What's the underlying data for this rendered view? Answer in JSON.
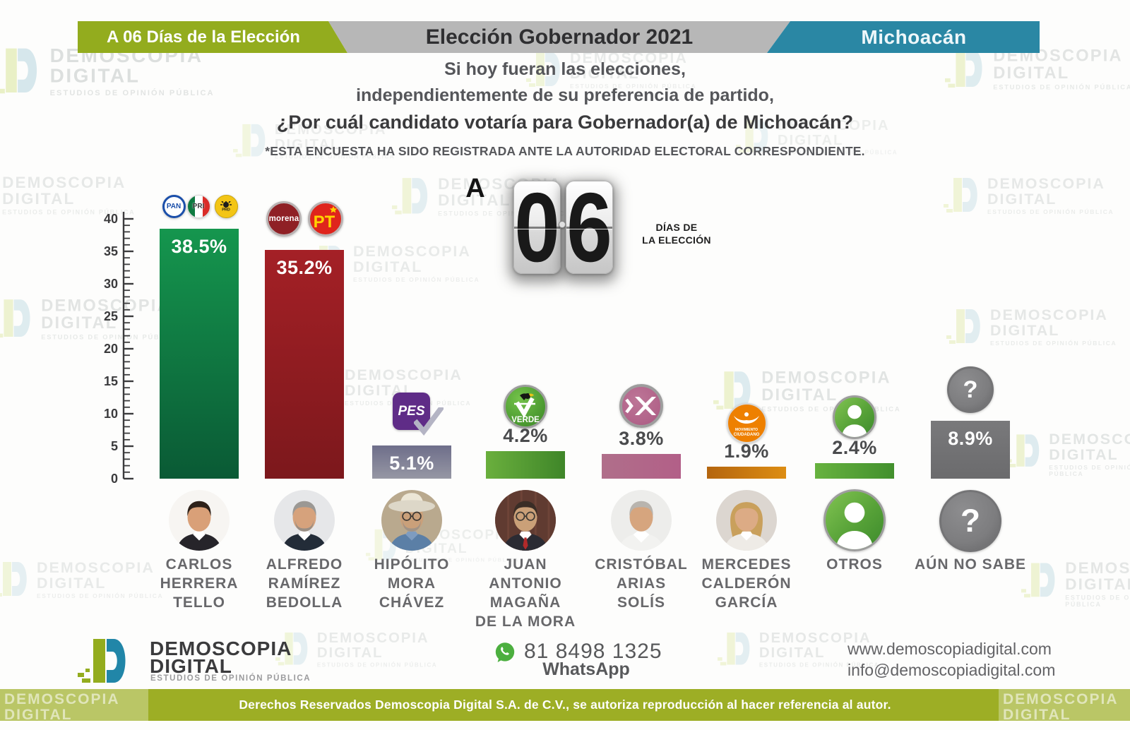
{
  "banner": {
    "left": {
      "label": "A 06 Días de la Elección",
      "bg": "#93ac1e"
    },
    "center": {
      "label": "Elección Gobernador 2021",
      "bg": "#b7b7b7"
    },
    "right": {
      "label": "Michoacán",
      "bg": "#2a87a4"
    }
  },
  "intro": {
    "line1": "Si hoy fueran las elecciones,",
    "line2": "independientemente de su preferencia de partido,",
    "question": "¿Por cuál candidato votaría para Gobernador(a) de Michoacán?",
    "note": "*ESTA ENCUESTA HA SIDO REGISTRADA ANTE LA AUTORIDAD ELECTORAL CORRESPONDIENTE."
  },
  "countdown": {
    "prefix": "A",
    "digits": [
      "0",
      "6"
    ],
    "caption_line1": "DÍAS DE",
    "caption_line2": "LA ELECCIÓN"
  },
  "chart_data": {
    "type": "bar",
    "title": "¿Por cuál candidato votaría para Gobernador(a) de Michoacán?",
    "categories": [
      "CARLOS HERRERA TELLO",
      "ALFREDO RAMÍREZ BEDOLLA",
      "HIPÓLITO MORA CHÁVEZ",
      "JUAN ANTONIO MAGAÑA DE LA MORA",
      "CRISTÓBAL ARIAS SOLÍS",
      "MERCEDES CALDERÓN GARCÍA",
      "OTROS",
      "AÚN NO SABE"
    ],
    "values": [
      38.5,
      35.2,
      5.1,
      4.2,
      3.8,
      1.9,
      2.4,
      8.9
    ],
    "labels": [
      "38.5%",
      "35.2%",
      "5.1%",
      "4.2%",
      "3.8%",
      "1.9%",
      "2.4%",
      "8.9%"
    ],
    "parties": [
      "PAN-PRI-PRD",
      "MORENA-PT",
      "PES",
      "PARTIDO VERDE",
      "FUERZA POR MÉXICO",
      "MOVIMIENTO CIUDADANO",
      "",
      ""
    ],
    "xlabel": "",
    "ylabel": "",
    "ylim": [
      0,
      40
    ],
    "ytick_major": 5,
    "ytick_minor": 1,
    "grid": false,
    "legend": false
  },
  "columns": [
    {
      "id": "herrera",
      "name_lines": [
        "CARLOS",
        "HERRERA",
        "TELLO"
      ],
      "label": "38.5%",
      "label_pos": "inside",
      "bar": {
        "from": "#15964e",
        "to": "#0a5a35",
        "dir": "v"
      }
    },
    {
      "id": "bedolla",
      "name_lines": [
        "ALFREDO",
        "RAMÍREZ",
        "BEDOLLA"
      ],
      "label": "35.2%",
      "label_pos": "inside",
      "bar": {
        "from": "#a42026",
        "to": "#7c181c",
        "dir": "v"
      }
    },
    {
      "id": "mora",
      "name_lines": [
        "HIPÓLITO",
        "MORA",
        "CHÁVEZ"
      ],
      "label": "5.1%",
      "label_pos": "inside",
      "bar": {
        "from": "#6e6e8a",
        "to": "#9697a4",
        "dir": "v"
      }
    },
    {
      "id": "magana",
      "name_lines": [
        "JUAN",
        "ANTONIO",
        "MAGAÑA",
        "DE LA MORA"
      ],
      "label": "4.2%",
      "label_pos": "above",
      "bar": {
        "from": "#6aaf3d",
        "to": "#3f8629",
        "dir": "h"
      }
    },
    {
      "id": "arias",
      "name_lines": [
        "CRISTÓBAL",
        "ARIAS",
        "SOLÍS"
      ],
      "label": "3.8%",
      "label_pos": "above",
      "bar": {
        "from": "#b06f8a",
        "to": "#b25f88",
        "dir": "h"
      }
    },
    {
      "id": "calderon",
      "name_lines": [
        "MERCEDES",
        "CALDERÓN",
        "GARCÍA"
      ],
      "label": "1.9%",
      "label_pos": "above",
      "bar": {
        "from": "#b4650e",
        "to": "#dd8d13",
        "dir": "h"
      }
    },
    {
      "id": "otros",
      "name_lines": [
        "OTROS"
      ],
      "label": "2.4%",
      "label_pos": "above",
      "bar": {
        "from": "#67b23f",
        "to": "#42902d",
        "dir": "h"
      }
    },
    {
      "id": "nosabe",
      "name_lines": [
        "AÚN NO SABE"
      ],
      "label": "8.9%",
      "label_pos": "inside",
      "bar": {
        "from": "#79797b",
        "to": "#6b6b6d",
        "dir": "v"
      }
    }
  ],
  "logos": {
    "pan": "PAN",
    "pri": "PRI",
    "prd": "PRD",
    "morena": "morena",
    "pt": "PT",
    "pes": "PES",
    "verde_initial": "V",
    "verde": "VERDE",
    "mc_line1": "MOVIMIENTO",
    "mc_line2": "CIUDADANO",
    "question_mark": "?",
    "colors": {
      "pan_blue": "#1b4faa",
      "pri_green": "#0e7a40",
      "pri_red": "#da2c27",
      "prd_yellow": "#f3c515",
      "morena_red": "#8f2025",
      "pt_red": "#df241c",
      "pt_yellow": "#ffd200",
      "pes_purple": "#5f2c87",
      "verde_green": "#4f9e33",
      "fuerza_pink": "#b2648a",
      "mc_orange": "#ee8000",
      "person_green": "#57a238",
      "question_gray": "#7d7d7f",
      "ring_gray": "#a9a9a9"
    }
  },
  "footer": {
    "brand_line1": "DEMOSCOPIA",
    "brand_line2": "DIGITAL",
    "tagline": "ESTUDIOS DE OPINIÓN PÚBLICA",
    "phone": "81 8498 1325",
    "phone_label": "WhatsApp",
    "website": "www.demoscopiadigital.com",
    "email": "info@demoscopiadigital.com",
    "copyright": "Derechos Reservados Demoscopia Digital S.A. de C.V., se autoriza reproducción al hacer referencia al autor.",
    "bar_bg": "#9dae25"
  },
  "watermark": {
    "line1": "DEMOSCOPIA",
    "line2": "DIGITAL",
    "tagline": "ESTUDIOS DE OPINIÓN PÚBLICA"
  }
}
